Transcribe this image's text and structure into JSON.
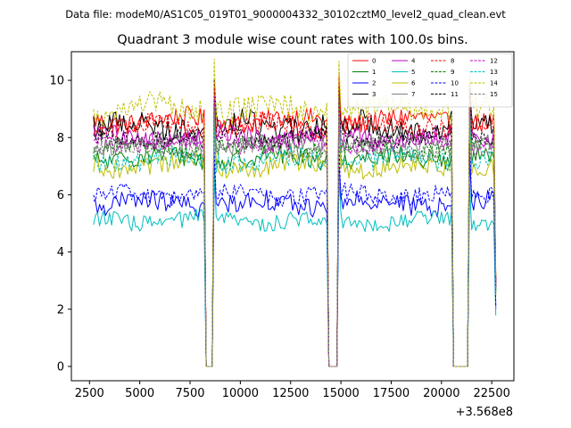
{
  "chart_data": {
    "type": "line",
    "suptitle": "Data file: modeM0/AS1C05_019T01_9000004332_30102cztM0_level2_quad_clean.evt",
    "title": "Quadrant 3 module wise count rates with 100.0s bins.",
    "xlabel": "",
    "ylabel": "",
    "x_offset_label": "+3.568e8",
    "xlim": [
      1600,
      23600
    ],
    "ylim": [
      -0.5,
      11
    ],
    "xticks": [
      2500,
      5000,
      7500,
      10000,
      12500,
      15000,
      17500,
      20000,
      22500
    ],
    "xtick_labels": [
      "2500",
      "5000",
      "7500",
      "10000",
      "12500",
      "15000",
      "17500",
      "20000",
      "22500"
    ],
    "yticks": [
      0,
      2,
      4,
      6,
      8,
      10
    ],
    "ytick_labels": [
      "0",
      "2",
      "4",
      "6",
      "8",
      "10"
    ],
    "bin_seconds": 100,
    "x_start": 2700,
    "x_end": 22700,
    "gaps": [
      {
        "from": 8300,
        "to": 8600
      },
      {
        "from": 14400,
        "to": 14800
      },
      {
        "from": 20600,
        "to": 21300
      }
    ],
    "legend_position": "top-right",
    "series": [
      {
        "name": "0",
        "color": "#ff0000",
        "style": "solid",
        "level": 8.6,
        "noise": 0.35
      },
      {
        "name": "1",
        "color": "#008000",
        "style": "solid",
        "level": 7.3,
        "noise": 0.35
      },
      {
        "name": "2",
        "color": "#0000ff",
        "style": "solid",
        "level": 5.7,
        "noise": 0.35
      },
      {
        "name": "3",
        "color": "#000000",
        "style": "solid",
        "level": 8.4,
        "noise": 0.45
      },
      {
        "name": "4",
        "color": "#bf00bf",
        "style": "solid",
        "level": 8.0,
        "noise": 0.35
      },
      {
        "name": "5",
        "color": "#00bfbf",
        "style": "solid",
        "level": 5.1,
        "noise": 0.3
      },
      {
        "name": "6",
        "color": "#bfbf00",
        "style": "solid",
        "level": 7.0,
        "noise": 0.35
      },
      {
        "name": "7",
        "color": "#808080",
        "style": "solid",
        "level": 7.8,
        "noise": 0.3
      },
      {
        "name": "8",
        "color": "#ff0000",
        "style": "dashed",
        "level": 8.4,
        "noise": 0.35
      },
      {
        "name": "9",
        "color": "#008000",
        "style": "dashed",
        "level": 7.6,
        "noise": 0.3
      },
      {
        "name": "10",
        "color": "#0000ff",
        "style": "dashed",
        "level": 6.0,
        "noise": 0.3
      },
      {
        "name": "11",
        "color": "#000000",
        "style": "dashed",
        "level": 8.0,
        "noise": 0.3
      },
      {
        "name": "12",
        "color": "#bf00bf",
        "style": "dashed",
        "level": 7.8,
        "noise": 0.3
      },
      {
        "name": "13",
        "color": "#00bfbf",
        "style": "dashed",
        "level": 7.2,
        "noise": 0.35
      },
      {
        "name": "14",
        "color": "#bfbf00",
        "style": "dashed",
        "level": 9.0,
        "noise": 0.45
      },
      {
        "name": "15",
        "color": "#808080",
        "style": "dashed",
        "level": 7.6,
        "noise": 0.3
      }
    ]
  }
}
